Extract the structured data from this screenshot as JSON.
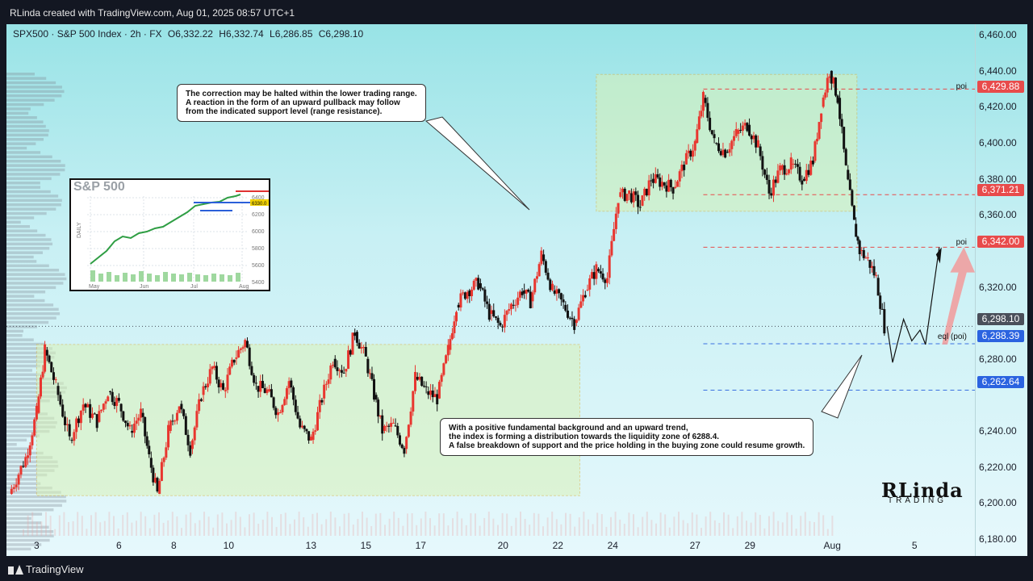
{
  "header": {
    "credit": "RLinda created with TradingView.com, Aug 01, 2025 08:57 UTC+1"
  },
  "footer": {
    "brand": "TradingView"
  },
  "legend": {
    "symbol": "SPX500 · S&P 500 Index · 2h · FX",
    "open": "O6,332.22",
    "high": "H6,332.74",
    "low": "L6,286.85",
    "close": "C6,298.10"
  },
  "notes": {
    "top": [
      "The correction may be halted within the lower trading range.",
      "A reaction in the form of an upward pullback may follow",
      "from the indicated support level (range resistance)."
    ],
    "bottom": [
      "With a positive fundamental background and an upward trend,",
      "the index is forming a distribution towards the liquidity zone of 6288.4.",
      "A false breakdown of support and the price holding in the buying zone could resume growth."
    ]
  },
  "inset": {
    "title": "S&P 500",
    "side_label": "DAILY",
    "months": [
      "May",
      "Jun",
      "Jul",
      "Aug"
    ],
    "ticks": [
      "6400",
      "6200",
      "6000",
      "5800",
      "5600",
      "5400"
    ],
    "tag": "6330.0"
  },
  "logo": {
    "main": "RLinda",
    "sub": "TRADING"
  },
  "colors": {
    "bull": "#e8362f",
    "bear": "#111111",
    "resistance": "#e84b4b",
    "support": "#3a6fe0",
    "zone": "#d9f2b8",
    "arrow": "#f29a9a"
  },
  "chart_data": {
    "type": "candlestick",
    "title": "SPX500 · S&P 500 Index · 2h · FX",
    "y_range": [
      6175,
      6465
    ],
    "y_ticks": [
      "6,460.00",
      "6,440.00",
      "6,420.00",
      "6,400.00",
      "6,380.00",
      "6,360.00",
      "6,320.00",
      "6,280.00",
      "6,240.00",
      "6,220.00",
      "6,200.00",
      "6,180.00"
    ],
    "y_tick_values": [
      6460,
      6440,
      6420,
      6400,
      6380,
      6360,
      6320,
      6280,
      6240,
      6220,
      6200,
      6180
    ],
    "x_ticks": [
      "3",
      "6",
      "8",
      "10",
      "13",
      "15",
      "17",
      "20",
      "22",
      "24",
      "27",
      "29",
      "Aug",
      "5"
    ],
    "x_tick_values": [
      3,
      6,
      8,
      10,
      13,
      15,
      17,
      20,
      22,
      24,
      27,
      29,
      32,
      35
    ],
    "x_range": [
      1.9,
      37.2
    ],
    "path": [
      [
        2.0,
        6205
      ],
      [
        2.6,
        6225
      ],
      [
        3.0,
        6250
      ],
      [
        3.3,
        6285
      ],
      [
        3.7,
        6265
      ],
      [
        4.2,
        6235
      ],
      [
        4.7,
        6255
      ],
      [
        5.2,
        6245
      ],
      [
        5.6,
        6262
      ],
      [
        6.0,
        6255
      ],
      [
        6.4,
        6240
      ],
      [
        6.8,
        6250
      ],
      [
        7.1,
        6225
      ],
      [
        7.4,
        6205
      ],
      [
        7.8,
        6240
      ],
      [
        8.2,
        6255
      ],
      [
        8.6,
        6230
      ],
      [
        9.0,
        6260
      ],
      [
        9.4,
        6275
      ],
      [
        9.8,
        6262
      ],
      [
        10.2,
        6280
      ],
      [
        10.6,
        6290
      ],
      [
        11.0,
        6265
      ],
      [
        11.4,
        6262
      ],
      [
        11.8,
        6250
      ],
      [
        12.2,
        6268
      ],
      [
        12.6,
        6242
      ],
      [
        13.0,
        6235
      ],
      [
        13.4,
        6258
      ],
      [
        13.8,
        6280
      ],
      [
        14.2,
        6273
      ],
      [
        14.6,
        6295
      ],
      [
        15.0,
        6280
      ],
      [
        15.3,
        6260
      ],
      [
        15.6,
        6240
      ],
      [
        16.0,
        6243
      ],
      [
        16.4,
        6230
      ],
      [
        16.8,
        6270
      ],
      [
        17.2,
        6262
      ],
      [
        17.6,
        6258
      ],
      [
        18.0,
        6285
      ],
      [
        18.3,
        6310
      ],
      [
        18.7,
        6318
      ],
      [
        19.1,
        6322
      ],
      [
        19.5,
        6305
      ],
      [
        19.9,
        6298
      ],
      [
        20.3,
        6310
      ],
      [
        20.7,
        6318
      ],
      [
        21.0,
        6312
      ],
      [
        21.4,
        6338
      ],
      [
        21.8,
        6318
      ],
      [
        22.2,
        6310
      ],
      [
        22.6,
        6300
      ],
      [
        23.0,
        6318
      ],
      [
        23.4,
        6330
      ],
      [
        23.8,
        6325
      ],
      [
        24.2,
        6370
      ],
      [
        24.6,
        6372
      ],
      [
        25.0,
        6365
      ],
      [
        25.4,
        6380
      ],
      [
        25.8,
        6378
      ],
      [
        26.2,
        6375
      ],
      [
        26.6,
        6388
      ],
      [
        27.0,
        6400
      ],
      [
        27.3,
        6425
      ],
      [
        27.7,
        6400
      ],
      [
        28.1,
        6395
      ],
      [
        28.5,
        6405
      ],
      [
        28.9,
        6410
      ],
      [
        29.3,
        6398
      ],
      [
        29.7,
        6372
      ],
      [
        30.1,
        6385
      ],
      [
        30.5,
        6388
      ],
      [
        30.9,
        6380
      ],
      [
        31.3,
        6390
      ],
      [
        31.6,
        6420
      ],
      [
        31.9,
        6440
      ],
      [
        32.2,
        6425
      ],
      [
        32.5,
        6385
      ],
      [
        32.8,
        6355
      ],
      [
        33.0,
        6340
      ],
      [
        33.3,
        6335
      ],
      [
        33.6,
        6325
      ],
      [
        33.9,
        6298
      ]
    ],
    "levels": [
      {
        "label": "poi",
        "value": 6429.88,
        "display": "6,429.88",
        "color": "resistance"
      },
      {
        "label": "",
        "value": 6371.21,
        "display": "6,371.21",
        "color": "resistance"
      },
      {
        "label": "poi",
        "value": 6342.0,
        "display": "6,342.00",
        "color": "resistance"
      },
      {
        "label": "eql (poi)",
        "value": 6288.39,
        "display": "6,288.39",
        "color": "support"
      },
      {
        "label": "",
        "value": 6262.64,
        "display": "6,262.64",
        "color": "support"
      }
    ],
    "last_price": {
      "value": 6298.1,
      "display": "6,298.10"
    },
    "zones": [
      {
        "x": [
          3.0,
          22.8
        ],
        "y": [
          6204,
          6288
        ]
      },
      {
        "x": [
          23.4,
          32.9
        ],
        "y": [
          6362,
          6438
        ]
      }
    ]
  }
}
